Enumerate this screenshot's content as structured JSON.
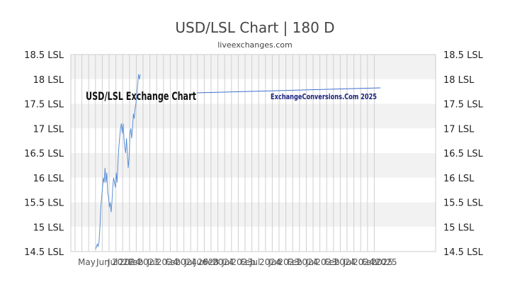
{
  "chart_data": {
    "type": "line",
    "title": "USD/LSL Chart | 180 D",
    "subtitle": "liveexchanges.com",
    "xlabel": "",
    "ylabel": "",
    "y_ticks": [
      "18.5 LSL",
      "18 LSL",
      "17.5 LSL",
      "17 LSL",
      "16.5 LSL",
      "16 LSL",
      "15.5 LSL",
      "15 LSL",
      "14.5 LSL"
    ],
    "ylim": [
      14.5,
      18.5
    ],
    "x_tick_labels": [
      "May",
      "Jun",
      "Jul",
      "2022",
      "2025"
    ],
    "grid": true,
    "legend": "none",
    "series_color": "#5b8fd6",
    "watermark_title": "USD/LSL Exchange Chart",
    "watermark_source": "ExchangeConversions.Com 2025",
    "series": [
      {
        "values": [
          14.55,
          14.6,
          14.65,
          14.6,
          14.7,
          15.0,
          15.4,
          15.6,
          15.8,
          16.0,
          15.9,
          16.2,
          15.9,
          16.1,
          15.7,
          15.6,
          15.4,
          15.5,
          15.3,
          15.5,
          15.8,
          16.0,
          15.9,
          15.8,
          16.1,
          15.9,
          16.3,
          16.6,
          16.8,
          17.0,
          17.1,
          16.9,
          17.1,
          16.8,
          16.6,
          16.5,
          16.8,
          16.5,
          16.2,
          16.4,
          16.9,
          17.0,
          16.8,
          17.0,
          17.3,
          17.2,
          17.4,
          17.5,
          17.7,
          17.9,
          18.1,
          18.0,
          18.1
        ]
      }
    ]
  }
}
